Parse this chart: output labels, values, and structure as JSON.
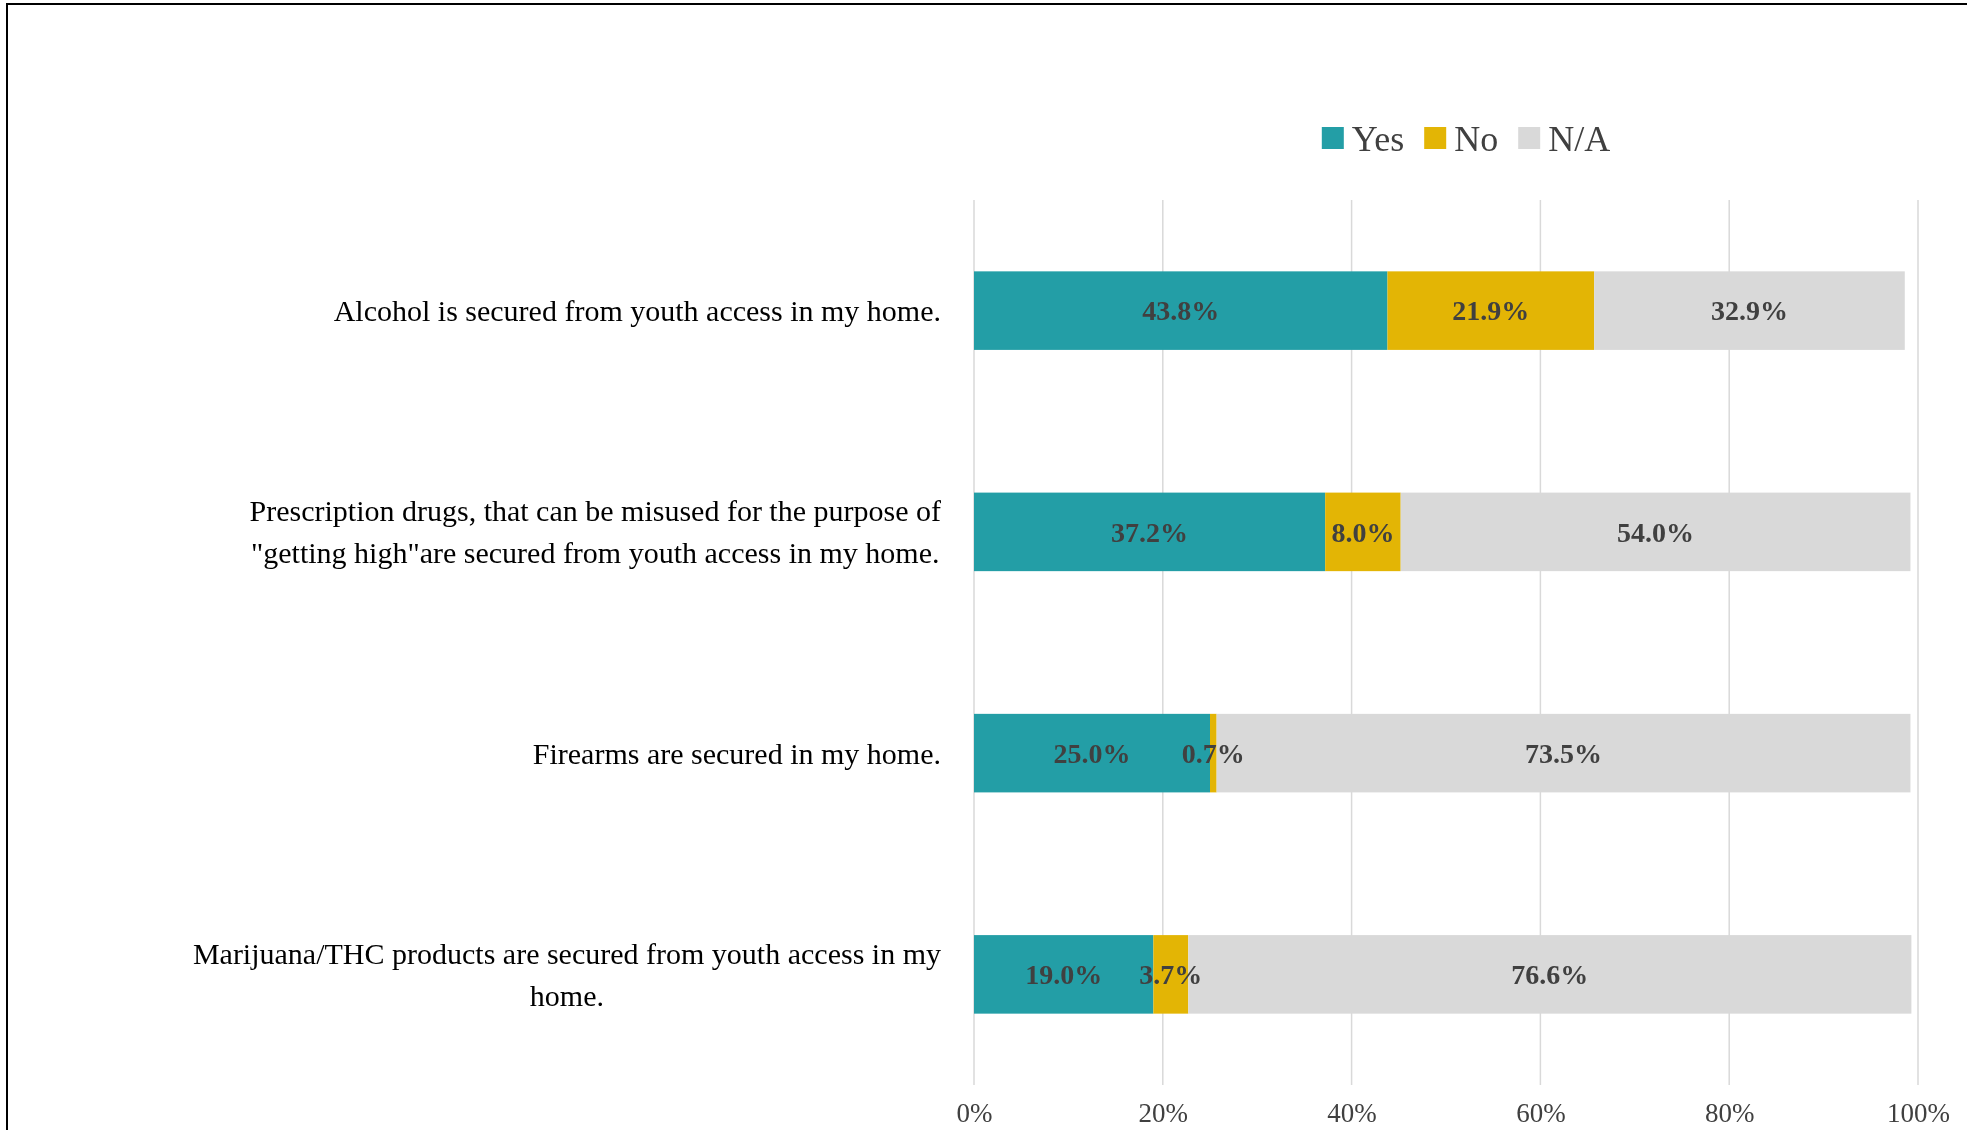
{
  "chart_data": {
    "type": "bar",
    "orientation": "horizontal",
    "stacked": true,
    "categories": [
      "Alcohol is secured from youth access in my home.",
      "Prescription drugs, that can be misused for the purpose of \"getting high\"are secured from youth access in my home.",
      "Firearms are secured in my home.",
      "Marijuana/THC products are secured from youth access in my home."
    ],
    "series": [
      {
        "name": "Yes",
        "color": "#239ea6",
        "values": [
          43.8,
          37.2,
          25.0,
          19.0
        ],
        "value_labels": [
          "43.8%",
          "37.2%",
          "25.0%",
          "19.0%"
        ]
      },
      {
        "name": "No",
        "color": "#e3b505",
        "values": [
          21.9,
          8.0,
          0.7,
          3.7
        ],
        "value_labels": [
          "21.9%",
          "8.0%",
          "0.7%",
          "3.7%"
        ]
      },
      {
        "name": "N/A",
        "color": "#d9d9d9",
        "values": [
          32.9,
          54.0,
          73.5,
          76.6
        ],
        "value_labels": [
          "32.9%",
          "54.0%",
          "73.5%",
          "76.6%"
        ]
      }
    ],
    "xlim": [
      0,
      100
    ],
    "xticks": [
      {
        "value": 0,
        "label": "0%"
      },
      {
        "value": 20,
        "label": "20%"
      },
      {
        "value": 40,
        "label": "40%"
      },
      {
        "value": 60,
        "label": "60%"
      },
      {
        "value": 80,
        "label": "80%"
      },
      {
        "value": 100,
        "label": "100%"
      }
    ],
    "grid": "x",
    "legend": "top"
  }
}
